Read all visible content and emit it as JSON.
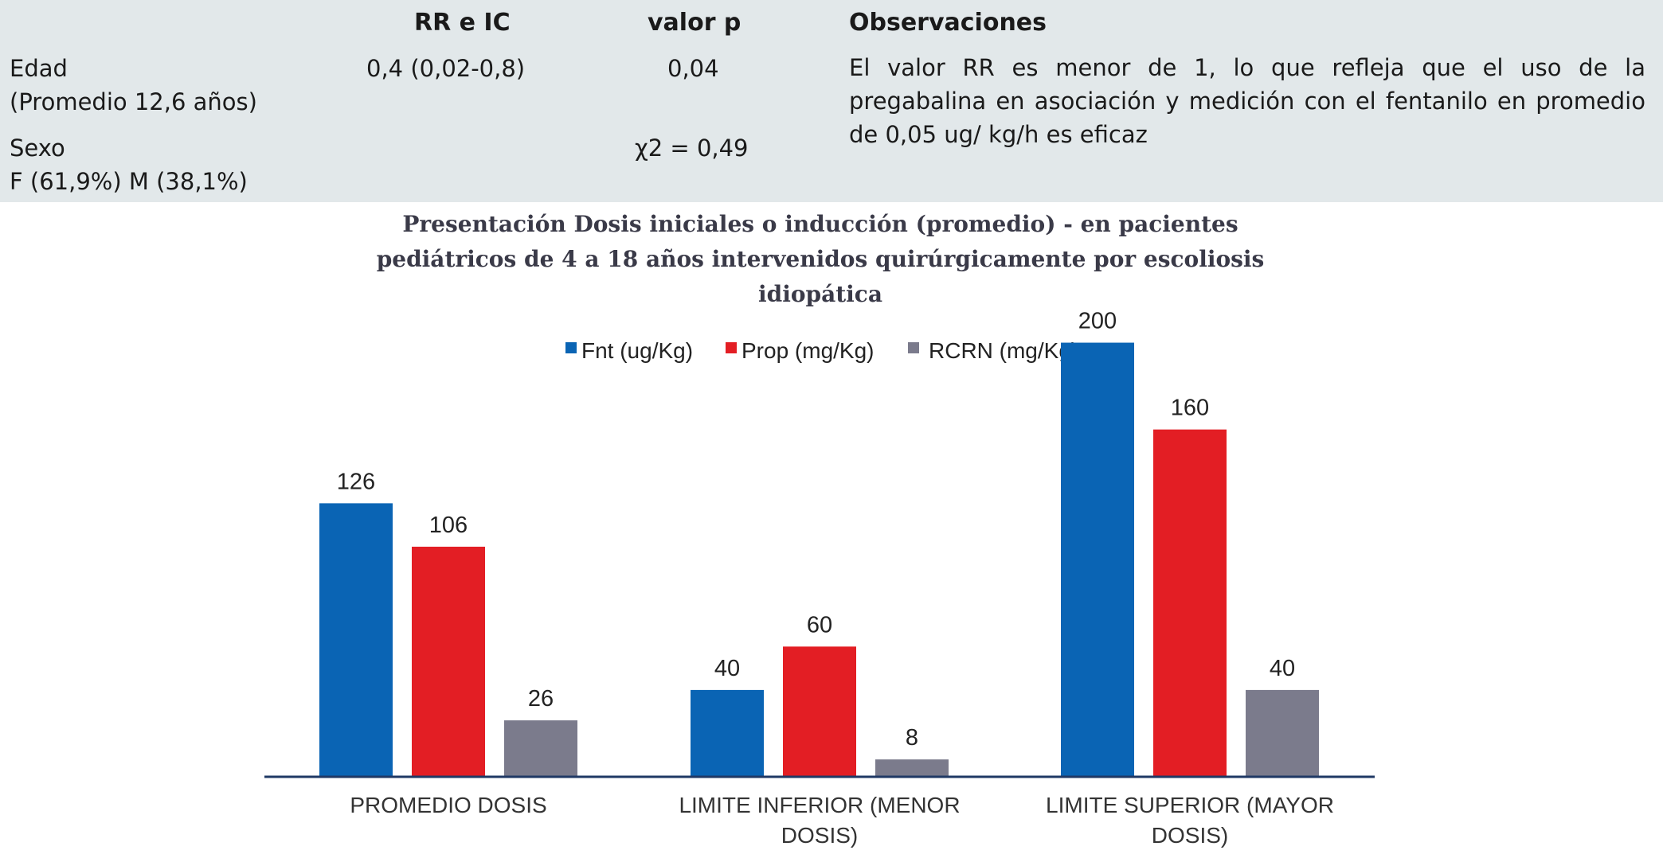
{
  "table": {
    "headers": {
      "rr": "RR e IC",
      "p": "valor p",
      "obs": "Observaciones"
    },
    "rows": [
      {
        "label1": "Edad",
        "label2": "(Promedio 12,6 años)",
        "rr": "0,4 (0,02-0,8)",
        "p": "0,04"
      },
      {
        "label1": "Sexo",
        "label2": "F (61,9%) M (38,1%)",
        "rr": "",
        "p": "χ2 = 0,49"
      }
    ],
    "observation": "El valor RR es menor de 1, lo que refleja que el uso de la pregabalina en asociación y medición con el fentanilo en promedio de 0,05 ug/ kg/h es eficaz"
  },
  "chart_data": {
    "type": "bar",
    "title_lines": [
      "Presentación Dosis iniciales o inducción (promedio) - en pacientes",
      "pediátricos de 4 a 18 años intervenidos quirúrgicamente por escoliosis",
      "idiopática"
    ],
    "categories": [
      "PROMEDIO DOSIS",
      "LIMITE INFERIOR (MENOR DOSIS)",
      "LIMITE SUPERIOR (MAYOR DOSIS)"
    ],
    "category_lines": [
      [
        "PROMEDIO DOSIS"
      ],
      [
        "LIMITE INFERIOR (MENOR",
        "DOSIS)"
      ],
      [
        "LIMITE SUPERIOR (MAYOR",
        "DOSIS)"
      ]
    ],
    "series": [
      {
        "name": "Fnt (ug/Kg)",
        "color": "#0a64b4",
        "values": [
          126,
          40,
          200
        ]
      },
      {
        "name": "Prop (mg/Kg)",
        "color": "#e31e24",
        "values": [
          106,
          60,
          160
        ]
      },
      {
        "name": "RCRN (mg/Kg)",
        "color": "#7b7b8c",
        "values": [
          26,
          8,
          40
        ]
      }
    ],
    "ylim": [
      0,
      220
    ],
    "legend_position": "top-center",
    "grid": false
  }
}
